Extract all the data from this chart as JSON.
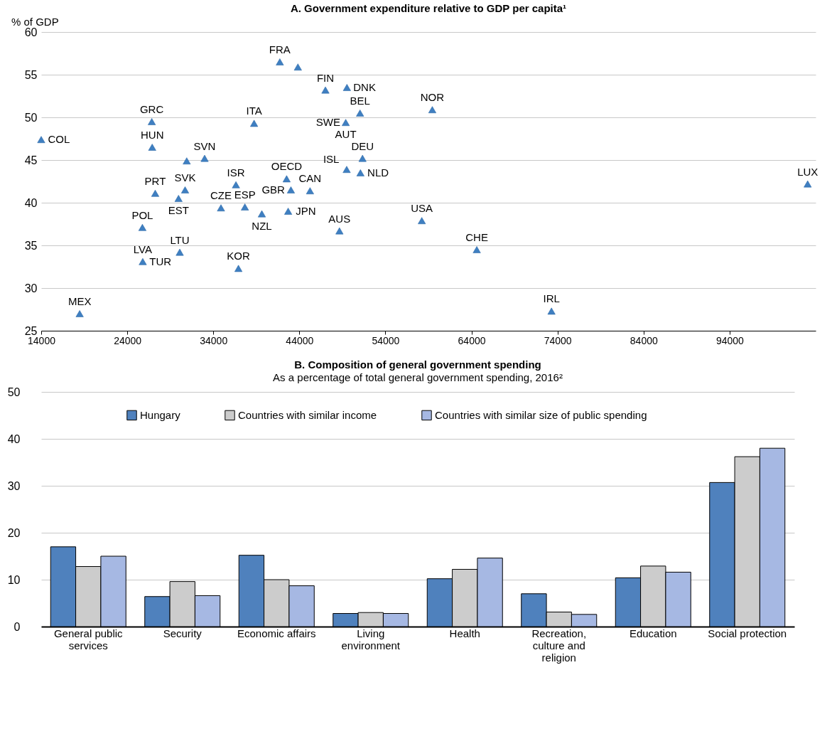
{
  "chart_data": [
    {
      "type": "scatter",
      "title": "A. Government expenditure relative to GDP per capita¹",
      "ylabel": "% of GDP",
      "x": [
        14000,
        18470,
        26850,
        26900,
        25760,
        25800,
        27250,
        29960,
        30720,
        30100,
        30910,
        32990,
        36630,
        34890,
        37670,
        36920,
        38740,
        39640,
        41730,
        43830,
        47030,
        49530,
        51050,
        49390,
        42520,
        43020,
        45240,
        42700,
        48660,
        51340,
        49500,
        51100,
        59450,
        58230,
        64620,
        73300,
        103070
      ],
      "series": [
        {
          "color": "#3f7fc1",
          "values": [
            47.4,
            27.0,
            49.5,
            46.5,
            37.1,
            33.1,
            41.1,
            40.5,
            41.5,
            34.2,
            44.9,
            45.2,
            42.1,
            39.4,
            39.5,
            32.3,
            49.3,
            38.7,
            56.5,
            55.9,
            53.2,
            53.5,
            50.5,
            49.4,
            42.8,
            41.5,
            41.4,
            39.0,
            36.7,
            45.2,
            43.9,
            43.5,
            50.9,
            37.9,
            34.5,
            27.3,
            42.2
          ]
        }
      ],
      "xlim": [
        14000,
        104000
      ],
      "xticks": [
        14000,
        24000,
        34000,
        44000,
        54000,
        64000,
        74000,
        84000,
        94000
      ],
      "ylim": [
        25,
        60
      ],
      "yticks": [
        25,
        30,
        35,
        40,
        45,
        50,
        55,
        60
      ],
      "grid": "y",
      "marker": "triangle",
      "annotations": [
        {
          "text": "COL",
          "x": 14000,
          "y": 47.4
        },
        {
          "text": "MEX",
          "x": 18470,
          "y": 27.0
        },
        {
          "text": "GRC",
          "x": 26850,
          "y": 49.5
        },
        {
          "text": "HUN",
          "x": 26900,
          "y": 46.5
        },
        {
          "text": "POL",
          "x": 25760,
          "y": 37.1
        },
        {
          "text": "LVA",
          "x": 25800,
          "y": 33.1
        },
        {
          "text": "TUR",
          "x": 25800,
          "y": 33.1
        },
        {
          "text": "PRT",
          "x": 27250,
          "y": 41.1
        },
        {
          "text": "EST",
          "x": 29960,
          "y": 40.5
        },
        {
          "text": "SVK",
          "x": 30720,
          "y": 41.5
        },
        {
          "text": "LTU",
          "x": 30100,
          "y": 34.2
        },
        {
          "text": "SVN",
          "x": 32990,
          "y": 45.2
        },
        {
          "text": "ISR",
          "x": 36630,
          "y": 42.1
        },
        {
          "text": "CZE",
          "x": 34890,
          "y": 39.4
        },
        {
          "text": "ESP",
          "x": 37670,
          "y": 39.5
        },
        {
          "text": "KOR",
          "x": 36920,
          "y": 32.3
        },
        {
          "text": "ITA",
          "x": 38740,
          "y": 49.3
        },
        {
          "text": "NZL",
          "x": 39640,
          "y": 38.7
        },
        {
          "text": "FRA",
          "x": 41730,
          "y": 56.5
        },
        {
          "text": "FIN",
          "x": 47030,
          "y": 53.2
        },
        {
          "text": "DNK",
          "x": 49530,
          "y": 53.5
        },
        {
          "text": "BEL",
          "x": 51050,
          "y": 50.5
        },
        {
          "text": "SWE",
          "x": 49390,
          "y": 49.4
        },
        {
          "text": "AUT",
          "x": 49390,
          "y": 49.4
        },
        {
          "text": "OECD",
          "x": 42520,
          "y": 42.8
        },
        {
          "text": "GBR",
          "x": 43020,
          "y": 41.5
        },
        {
          "text": "CAN",
          "x": 45240,
          "y": 41.4
        },
        {
          "text": "JPN",
          "x": 42700,
          "y": 39.0
        },
        {
          "text": "AUS",
          "x": 48660,
          "y": 36.7
        },
        {
          "text": "DEU",
          "x": 51340,
          "y": 45.2
        },
        {
          "text": "ISL",
          "x": 49500,
          "y": 43.9
        },
        {
          "text": "NLD",
          "x": 51100,
          "y": 43.5
        },
        {
          "text": "NOR",
          "x": 59450,
          "y": 50.9
        },
        {
          "text": "USA",
          "x": 58230,
          "y": 37.9
        },
        {
          "text": "CHE",
          "x": 64620,
          "y": 34.5
        },
        {
          "text": "IRL",
          "x": 73300,
          "y": 27.3
        },
        {
          "text": "LUX",
          "x": 103070,
          "y": 42.2
        }
      ]
    },
    {
      "type": "bar",
      "title": "B. Composition of general government spending",
      "subtitle": "As a percentage of total general government spending, 2016²",
      "categories": [
        "General public services",
        "Security",
        "Economic affairs",
        "Living environment",
        "Health",
        "Recreation, culture and religion",
        "Education",
        "Social protection"
      ],
      "series": [
        {
          "name": "Hungary",
          "color": "#4f81bd",
          "values": [
            17.0,
            6.4,
            15.2,
            2.8,
            10.2,
            7.0,
            10.4,
            30.7
          ]
        },
        {
          "name": "Countries with similar income",
          "color": "#cccccc",
          "values": [
            12.8,
            9.6,
            10.0,
            3.0,
            12.2,
            3.1,
            12.9,
            36.2
          ]
        },
        {
          "name": "Countries with similar size of public spending",
          "color": "#a6b8e3",
          "values": [
            15.0,
            6.6,
            8.7,
            2.8,
            14.6,
            2.6,
            11.6,
            38.0
          ]
        }
      ],
      "ylim": [
        0,
        50
      ],
      "yticks": [
        0,
        10,
        20,
        30,
        40,
        50
      ],
      "grid": "y",
      "legend": "top"
    }
  ]
}
